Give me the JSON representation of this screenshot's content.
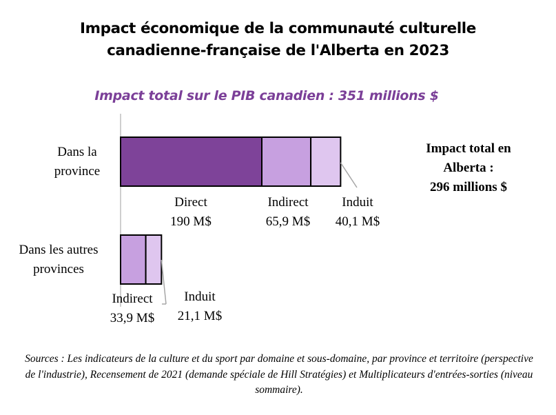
{
  "title_lines": [
    "Impact économique de la communauté culturelle",
    "canadienne-française de l'Alberta en 2023"
  ],
  "subtitle": "Impact total sur le PIB canadien : 351 millions $",
  "total_box": {
    "lines": [
      "Impact total en",
      "Alberta :",
      "296 millions $"
    ]
  },
  "sources": "Sources : Les indicateurs de la culture et du sport par domaine et sous-domaine, par province et territoire (perspective de l'industrie), Recensement de 2021 (demande spéciale de Hill Stratégies) et Multiplicateurs d'entrées-sorties (niveau sommaire).",
  "colors": {
    "direct": "#7e4399",
    "indirect": "#c7a0e0",
    "induit": "#dfc6ef",
    "title_accent": "#7b3f98"
  },
  "chart_data": {
    "type": "bar",
    "orientation": "horizontal",
    "stacked": true,
    "categories": [
      [
        "Dans la",
        "province"
      ],
      [
        "Dans les autres",
        "provinces"
      ]
    ],
    "segments": [
      [
        {
          "name": "Direct",
          "value": 190,
          "label": "190 M$"
        },
        {
          "name": "Indirect",
          "value": 65.9,
          "label": "65,9 M$"
        },
        {
          "name": "Induit",
          "value": 40.1,
          "label": "40,1 M$"
        }
      ],
      [
        {
          "name": "Indirect",
          "value": 33.9,
          "label": "33,9 M$"
        },
        {
          "name": "Induit",
          "value": 21.1,
          "label": "21,1 M$"
        }
      ]
    ]
  }
}
